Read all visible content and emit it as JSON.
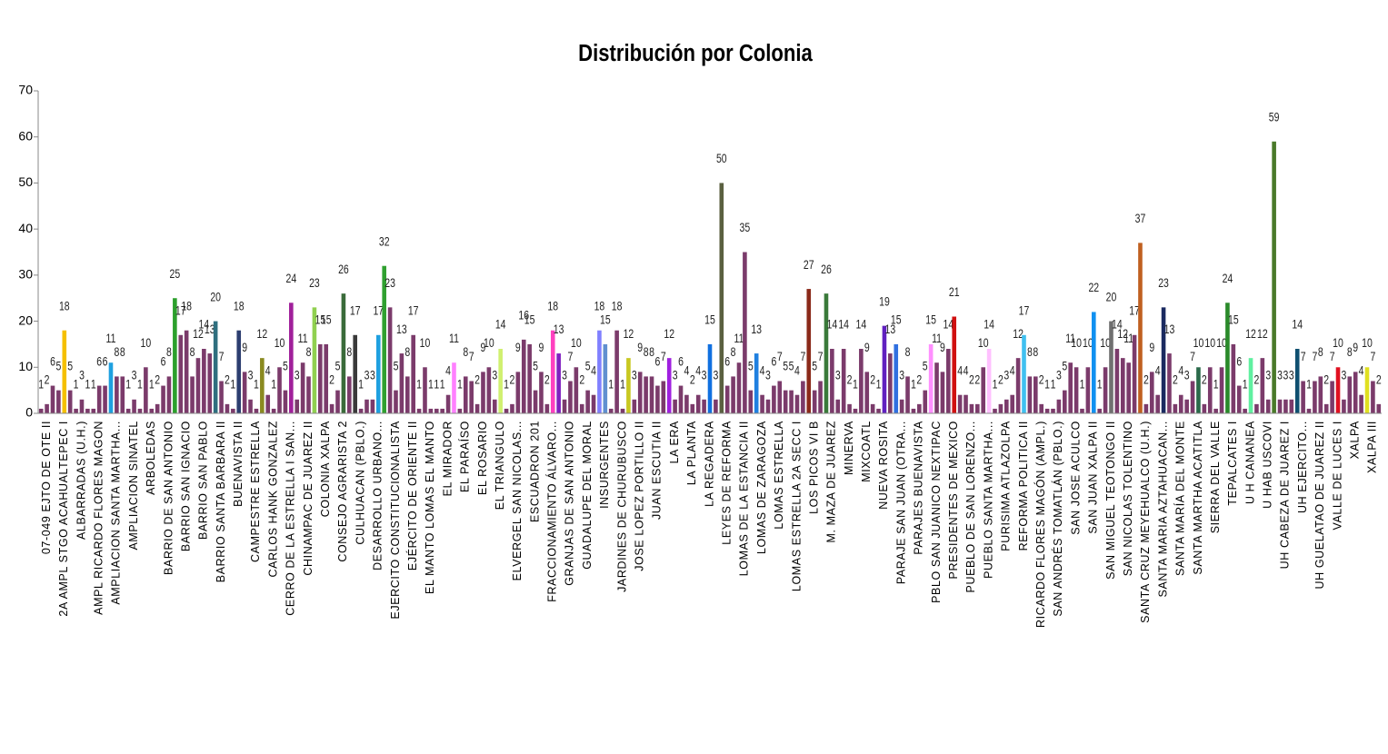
{
  "chart_data": {
    "type": "bar",
    "title": "Distribución por Colonia",
    "categories": [
      null,
      "07-049 EJTO DE OTE II",
      null,
      null,
      "2A AMPL STGO ACAHUALTEPEC I",
      null,
      null,
      "ALBARRADAS (U.H.)",
      null,
      null,
      "AMPL RICARDO FLORES MAGON",
      null,
      null,
      "AMPLIACION SANTA MARTHA...",
      null,
      null,
      "AMPLIACION SINATEL",
      null,
      null,
      "ARBOLEDAS",
      null,
      null,
      "BARRIO DE SAN ANTONIO",
      null,
      null,
      "BARRIO SAN IGNACIO",
      null,
      null,
      "BARRIO SAN PABLO",
      null,
      null,
      "BARRIO SANTA BARBARA II",
      null,
      null,
      "BUENAVISTA II",
      null,
      null,
      "CAMPESTRE ESTRELLA",
      null,
      null,
      "CARLOS HANK GONZALEZ",
      null,
      null,
      "CERRO DE LA ESTRELLA I SAN...",
      null,
      null,
      "CHINAMPAC DE JUAREZ II",
      null,
      null,
      "COLONIA XALPA",
      null,
      null,
      "CONSEJO AGRARISTA 2",
      null,
      null,
      "CULHUACAN (PBLO.)",
      null,
      null,
      "DESARROLLO URBANO...",
      null,
      null,
      "EJERCITO CONSTITUCIONALISTA",
      null,
      null,
      "EJÉRCITO DE ORIENTE II",
      null,
      null,
      "EL MANTO LOMAS EL MANTO",
      null,
      null,
      "EL MIRADOR",
      null,
      null,
      "EL PARAÍSO",
      null,
      null,
      "EL ROSARIO",
      null,
      null,
      "EL TRIANGULO",
      null,
      null,
      "ELVERGEL SAN NICOLAS...",
      null,
      null,
      "ESCUADRON 201",
      null,
      null,
      "FRACCIONAMIENTO ÁLVARO...",
      null,
      null,
      "GRANJAS DE SAN ANTONIO",
      null,
      null,
      "GUADALUPE DEL MORAL",
      null,
      null,
      "INSURGENTES",
      null,
      null,
      "JARDINES DE CHURUBUSCO",
      null,
      null,
      "JOSE LOPEZ PORTILLO II",
      null,
      null,
      "JUAN ESCUTIA II",
      null,
      null,
      "LA ERA",
      null,
      null,
      "LA PLANTA",
      null,
      null,
      "LA REGADERA",
      null,
      null,
      "LEYES DE REFORMA",
      null,
      null,
      "LOMAS DE LA ESTANCIA II",
      null,
      null,
      "LOMAS DE ZARAGOZA",
      null,
      null,
      "LOMAS ESTRELLA",
      null,
      null,
      "LOMAS ESTRELLA 2A SECC I",
      null,
      null,
      "LOS PICOS VI B",
      null,
      null,
      "M. MAZA DE JUAREZ",
      null,
      null,
      "MINERVA",
      null,
      null,
      "MIXCOATL",
      null,
      null,
      "NUEVA ROSITA",
      null,
      null,
      "PARAJE SAN JUAN (OTRA...",
      null,
      null,
      "PARAJES BUENAVISTA",
      null,
      null,
      "PBLO SAN JUANICO NEXTIPAC",
      null,
      null,
      "PRESIDENTES DE MEXICO",
      null,
      null,
      "PUEBLO DE SAN LORENZO...",
      null,
      null,
      "PUEBLO SANTA MARTHA...",
      null,
      null,
      "PURISIMA ATLAZOLPA",
      null,
      null,
      "REFORMA POLITICA II",
      null,
      null,
      "RICARDO FLORES MAGÓN (AMPL.)",
      null,
      null,
      "SAN ANDRÉS TOMATLÁN (PBLO.)",
      null,
      null,
      "SAN JOSE ACULCO",
      null,
      null,
      "SAN JUAN XALPA II",
      null,
      null,
      "SAN MIGUEL TEOTONGO II",
      null,
      null,
      "SAN NICOLAS TOLENTINO",
      null,
      null,
      "SANTA CRUZ MEYEHUALCO (U.H.)",
      null,
      null,
      "SANTA MARIA AZTAHUACAN...",
      null,
      null,
      "SANTA MARÍA DEL MONTE",
      null,
      null,
      "SANTA MARTHA ACATITLA",
      null,
      null,
      "SIERRA DEL VALLE",
      null,
      null,
      "TEPALCATES I",
      null,
      null,
      "U H CANANEA",
      null,
      null,
      "U HAB USCOVI",
      null,
      null,
      "UH CABEZA DE JUAREZ I",
      null,
      null,
      "UH EJERCITO...",
      null,
      null,
      "UH GUELATAO DE JUAREZ II",
      null,
      null,
      "VALLE DE LUCES I",
      null,
      null,
      "XALPA",
      null,
      null,
      "XALPA III",
      null
    ],
    "values": [
      1,
      2,
      6,
      5,
      18,
      5,
      1,
      3,
      1,
      1,
      6,
      6,
      11,
      8,
      8,
      1,
      3,
      1,
      10,
      1,
      2,
      6,
      8,
      25,
      17,
      18,
      8,
      12,
      14,
      13,
      20,
      7,
      2,
      1,
      18,
      9,
      3,
      1,
      12,
      4,
      1,
      10,
      5,
      24,
      3,
      11,
      8,
      23,
      15,
      15,
      2,
      5,
      26,
      8,
      17,
      1,
      3,
      3,
      17,
      32,
      23,
      5,
      13,
      8,
      17,
      1,
      10,
      1,
      1,
      1,
      4,
      11,
      1,
      8,
      7,
      2,
      9,
      10,
      3,
      14,
      1,
      2,
      9,
      16,
      15,
      5,
      9,
      2,
      18,
      13,
      3,
      7,
      10,
      2,
      5,
      4,
      18,
      15,
      1,
      18,
      1,
      12,
      3,
      9,
      8,
      8,
      6,
      7,
      12,
      3,
      6,
      4,
      2,
      4,
      3,
      15,
      3,
      50,
      6,
      8,
      11,
      35,
      5,
      13,
      4,
      3,
      6,
      7,
      5,
      5,
      4,
      7,
      27,
      5,
      7,
      26,
      14,
      3,
      14,
      2,
      1,
      14,
      9,
      2,
      1,
      19,
      13,
      15,
      3,
      8,
      1,
      2,
      5,
      15,
      11,
      9,
      14,
      21,
      4,
      4,
      2,
      2,
      10,
      14,
      1,
      2,
      3,
      4,
      12,
      17,
      8,
      8,
      2,
      1,
      1,
      3,
      5,
      11,
      10,
      1,
      10,
      22,
      1,
      10,
      20,
      14,
      12,
      11,
      17,
      37,
      2,
      9,
      4,
      23,
      13,
      2,
      4,
      3,
      7,
      10,
      2,
      10,
      1,
      10,
      24,
      15,
      6,
      1,
      12,
      2,
      12,
      3,
      59,
      3,
      3,
      3,
      14,
      7,
      1,
      7,
      8,
      2,
      7,
      10,
      3,
      8,
      9,
      4,
      10,
      7,
      2
    ],
    "colors": [
      "#7b3b6b",
      "#7b3b6b",
      "#7b3b6b",
      "#7b3b6b",
      "#f5c000",
      "#7b3b6b",
      "#7b3b6b",
      "#7b3b6b",
      "#7b3b6b",
      "#7b3b6b",
      "#7b3b6b",
      "#7b3b6b",
      "#1ea0e0",
      "#7b3b6b",
      "#7b3b6b",
      "#7b3b6b",
      "#7b3b6b",
      "#7b3b6b",
      "#7b3b6b",
      "#7b3b6b",
      "#7b3b6b",
      "#7b3b6b",
      "#7b3b6b",
      "#2ca02c",
      "#7b3b6b",
      "#7b3b6b",
      "#7b3b6b",
      "#7b3b6b",
      "#7b3b6b",
      "#7b3b6b",
      "#2f6f7f",
      "#7b3b6b",
      "#7b3b6b",
      "#7b3b6b",
      "#2c3e70",
      "#7b3b6b",
      "#7b3b6b",
      "#7b3b6b",
      "#8a8a20",
      "#7b3b6b",
      "#7b3b6b",
      "#7b3b6b",
      "#7b3b6b",
      "#a0209a",
      "#7b3b6b",
      "#7b3b6b",
      "#7b3b6b",
      "#90d050",
      "#7b3b6b",
      "#7b3b6b",
      "#7b3b6b",
      "#7b3b6b",
      "#3a6b3a",
      "#7b3b6b",
      "#3a3a3a",
      "#7b3b6b",
      "#7b3b6b",
      "#7b3b6b",
      "#1ea0e0",
      "#30a030",
      "#7b3b6b",
      "#7b3b6b",
      "#7b3b6b",
      "#7b3b6b",
      "#7b3b6b",
      "#7b3b6b",
      "#7b3b6b",
      "#7b3b6b",
      "#7b3b6b",
      "#7b3b6b",
      "#7b3b6b",
      "#ff80ff",
      "#7b3b6b",
      "#7b3b6b",
      "#7b3b6b",
      "#7b3b6b",
      "#7b3b6b",
      "#7b3b6b",
      "#7b3b6b",
      "#d0f070",
      "#7b3b6b",
      "#7b3b6b",
      "#7b3b6b",
      "#7b3b6b",
      "#7b3b6b",
      "#7b3b6b",
      "#7b3b6b",
      "#7b3b6b",
      "#ff40c0",
      "#8020c0",
      "#7b3b6b",
      "#7b3b6b",
      "#7b3b6b",
      "#7b3b6b",
      "#7b3b6b",
      "#7b3b6b",
      "#8080ff",
      "#6090d0",
      "#7b3b6b",
      "#7b3b6b",
      "#7b3b6b",
      "#c8c820",
      "#7b3b6b",
      "#7b3b6b",
      "#7b3b6b",
      "#7b3b6b",
      "#7b3b6b",
      "#7b3b6b",
      "#a020e0",
      "#7b3b6b",
      "#7b3b6b",
      "#7b3b6b",
      "#7b3b6b",
      "#7b3b6b",
      "#7b3b6b",
      "#1070e0",
      "#7b3b6b",
      "#5a6040",
      "#7b3b6b",
      "#7b3b6b",
      "#7b3b6b",
      "#7b3b6b",
      "#7b3b6b",
      "#2080e0",
      "#7b3b6b",
      "#7b3b6b",
      "#7b3b6b",
      "#7b3b6b",
      "#7b3b6b",
      "#7b3b6b",
      "#7b3b6b",
      "#7b3b6b",
      "#8b2a1a",
      "#7b3b6b",
      "#7b3b6b",
      "#3a7a3a",
      "#7b3b6b",
      "#7b3b6b",
      "#7b3b6b",
      "#7b3b6b",
      "#7b3b6b",
      "#7b3b6b",
      "#7b3b6b",
      "#7b3b6b",
      "#7b3b6b",
      "#6020c0",
      "#7b3b6b",
      "#3070e0",
      "#7b3b6b",
      "#7b3b6b",
      "#7b3b6b",
      "#7b3b6b",
      "#7b3b6b",
      "#ff90ff",
      "#7b3b6b",
      "#7b3b6b",
      "#7b3b6b",
      "#d01010",
      "#7b3b6b",
      "#7b3b6b",
      "#7b3b6b",
      "#7b3b6b",
      "#7b3b6b",
      "#ffc0ff",
      "#7b3b6b",
      "#7b3b6b",
      "#7b3b6b",
      "#7b3b6b",
      "#7b3b6b",
      "#40c0f0",
      "#7b3b6b",
      "#7b3b6b",
      "#7b3b6b",
      "#7b3b6b",
      "#7b3b6b",
      "#7b3b6b",
      "#7b3b6b",
      "#7b3b6b",
      "#7b3b6b",
      "#7b3b6b",
      "#7b3b6b",
      "#1090f0",
      "#7b3b6b",
      "#7b3b6b",
      "#707070",
      "#7b3b6b",
      "#7b3b6b",
      "#7b3b6b",
      "#7b3b6b",
      "#c06020",
      "#7b3b6b",
      "#7b3b6b",
      "#7b3b6b",
      "#1a2a60",
      "#7b3b6b",
      "#7b3b6b",
      "#7b3b6b",
      "#7b3b6b",
      "#7b3b6b",
      "#2a6a4a",
      "#7b3b6b",
      "#7b3b6b",
      "#7b3b6b",
      "#7b3b6b",
      "#2a8a2a",
      "#7b3b6b",
      "#7b3b6b",
      "#7b3b6b",
      "#60f0a0",
      "#7b3b6b",
      "#7b3b6b",
      "#7b3b6b",
      "#4a7a2a",
      "#7b3b6b",
      "#7b3b6b",
      "#7b3b6b",
      "#105070",
      "#7b3b6b",
      "#7b3b6b",
      "#7b3b6b",
      "#7b3b6b",
      "#7b3b6b",
      "#7b3b6b",
      "#e01020",
      "#7b3b6b",
      "#7b3b6b",
      "#7b3b6b",
      "#7b3b6b",
      "#e0e020",
      "#7b3b6b",
      "#7b3b6b"
    ],
    "ylim": [
      0,
      70
    ],
    "yticks": [
      0,
      10,
      20,
      30,
      40,
      50,
      60,
      70
    ],
    "grid": false
  }
}
